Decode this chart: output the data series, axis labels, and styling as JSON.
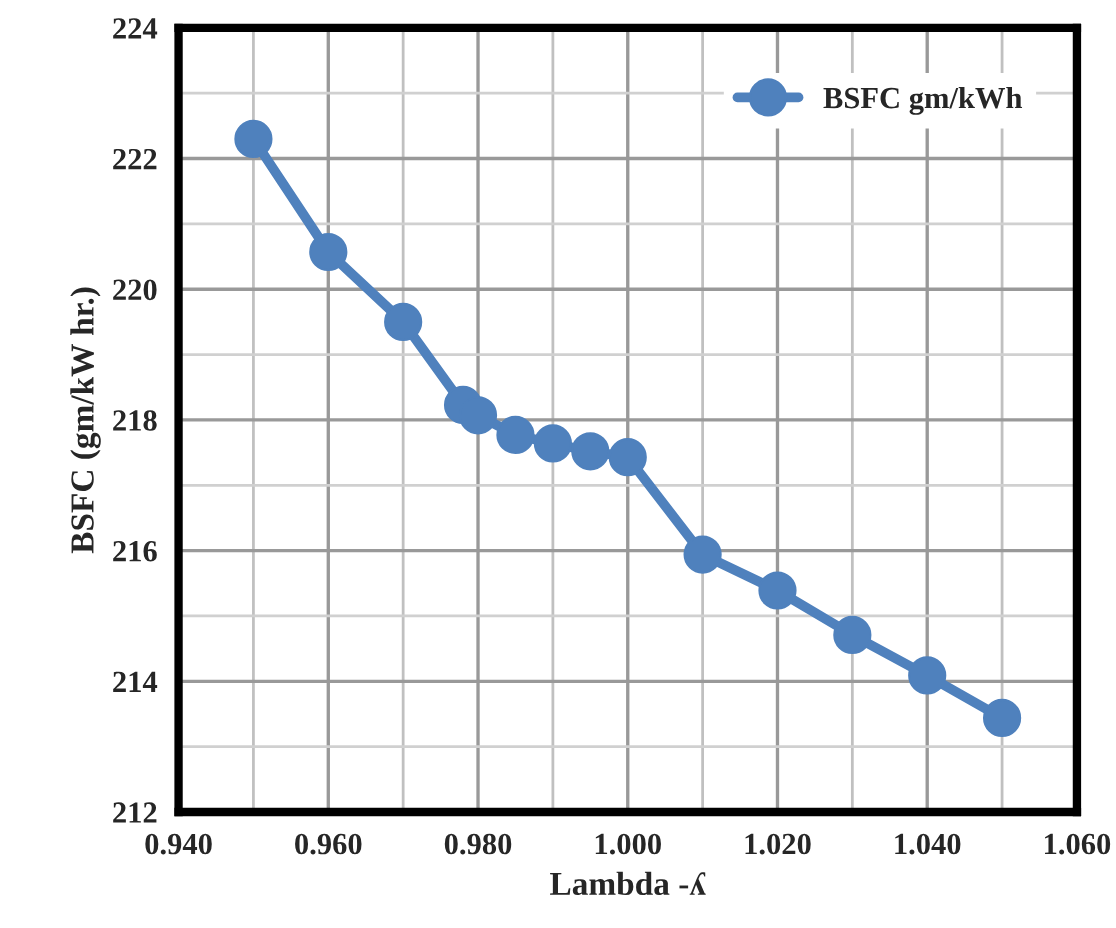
{
  "chart_data": {
    "type": "line",
    "xlabel": "Lambda -ʎ",
    "ylabel": "BSFC (gm/kW hr.)",
    "x": [
      0.95,
      0.96,
      0.97,
      0.978,
      0.98,
      0.985,
      0.99,
      0.995,
      1.0,
      1.01,
      1.02,
      1.03,
      1.04,
      1.05
    ],
    "series": [
      {
        "name": "BSFC gm/kWh",
        "color": "#4f81bd",
        "values": [
          222.3,
          220.57,
          219.5,
          218.23,
          218.07,
          217.77,
          217.64,
          217.52,
          217.43,
          215.94,
          215.39,
          214.71,
          214.09,
          213.44
        ]
      }
    ],
    "xlim": [
      0.94,
      1.06
    ],
    "xticks": [
      {
        "value": 0.94,
        "label": "0.940"
      },
      {
        "value": 0.96,
        "label": "0.960"
      },
      {
        "value": 0.98,
        "label": "0.980"
      },
      {
        "value": 1.0,
        "label": "1.000"
      },
      {
        "value": 1.02,
        "label": "1.020"
      },
      {
        "value": 1.04,
        "label": "1.040"
      },
      {
        "value": 1.06,
        "label": "1.060"
      }
    ],
    "ylim": [
      212,
      224
    ],
    "yticks": [
      212,
      214,
      216,
      218,
      220,
      222,
      224
    ],
    "grid": true,
    "legend": "top right",
    "marker": "circle",
    "line_style": "solid"
  }
}
